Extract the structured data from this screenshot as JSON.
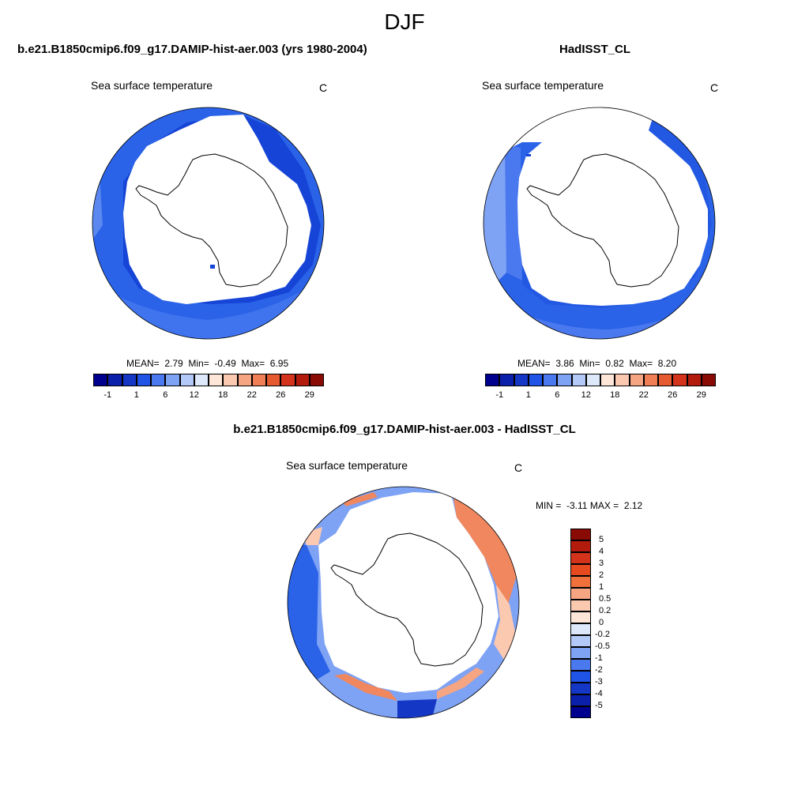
{
  "title": "DJF",
  "panels": [
    {
      "id": "model",
      "title": "b.e21.B1850cmip6.f09_g17.DAMIP-hist-aer.003 (yrs 1980-2004)",
      "variable": "Sea surface temperature",
      "units": "C",
      "stats": {
        "mean_label": "MEAN=",
        "mean": "2.79",
        "min_label": "Min=",
        "min": "-0.49",
        "max_label": "Max=",
        "max": "6.95"
      }
    },
    {
      "id": "obs",
      "title": "HadISST_CL",
      "variable": "Sea surface temperature",
      "units": "C",
      "stats": {
        "mean_label": "MEAN=",
        "mean": "3.86",
        "min_label": "Min=",
        "min": "0.82",
        "max_label": "Max=",
        "max": "8.20"
      }
    }
  ],
  "diff_panel": {
    "title": "b.e21.B1850cmip6.f09_g17.DAMIP-hist-aer.003 - HadISST_CL",
    "variable": "Sea surface temperature",
    "units": "C",
    "stats": {
      "min_label": "MIN =",
      "min": "-3.11",
      "max_label": "MAX =",
      "max": "2.12"
    }
  },
  "colorbar_abs": {
    "tick_labels": [
      "-1",
      "1",
      "6",
      "12",
      "18",
      "22",
      "26",
      "29"
    ],
    "colors": [
      "#00008f",
      "#0a1faa",
      "#1437c6",
      "#1f54e6",
      "#4a78ee",
      "#7ea2f4",
      "#b3c9f8",
      "#dde8fb",
      "#fde6d8",
      "#fbc8b0",
      "#f6a582",
      "#f07f56",
      "#e65a30",
      "#d3331a",
      "#b31b0c",
      "#8a0a05"
    ]
  },
  "colorbar_diff": {
    "tick_labels": [
      "5",
      "4",
      "3",
      "2",
      "1",
      "0.5",
      "0.2",
      "0",
      "-0.2",
      "-0.5",
      "-1",
      "-2",
      "-3",
      "-4",
      "-5"
    ],
    "colors": [
      "#8a0a05",
      "#b31b0c",
      "#d3331a",
      "#e84a20",
      "#f0703c",
      "#f6a582",
      "#fbc8b0",
      "#fde6d8",
      "#dde8fb",
      "#b3c9f8",
      "#7ea2f4",
      "#4a78ee",
      "#1f54e6",
      "#1437c6",
      "#0a1faa",
      "#00008f"
    ]
  }
}
